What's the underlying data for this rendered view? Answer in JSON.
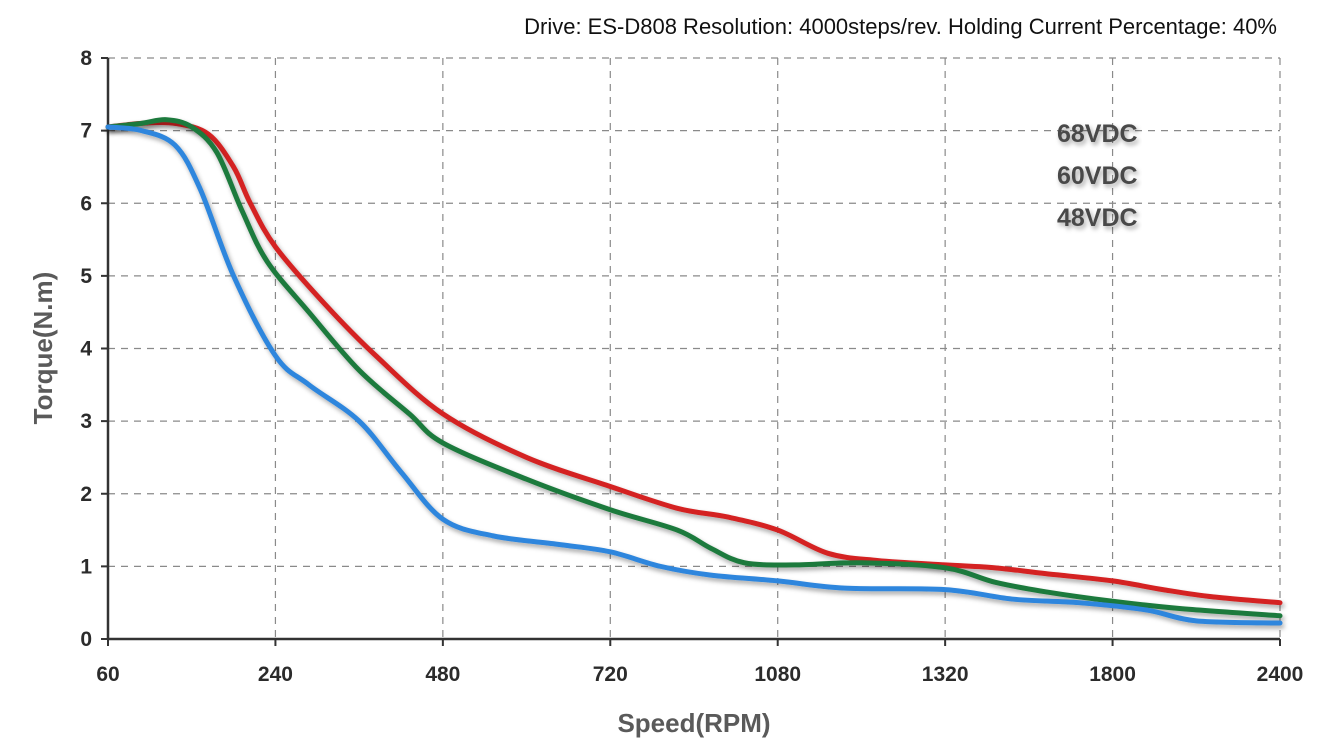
{
  "chart_data": {
    "type": "line",
    "title": "Drive: ES-D808 Resolution: 4000steps/rev. Holding Current Percentage: 40%",
    "xlabel": "Speed(RPM)",
    "ylabel": "Torque(N.m)",
    "categories": [
      "60",
      "240",
      "480",
      "720",
      "1080",
      "1320",
      "1800",
      "2400"
    ],
    "ylim": [
      0,
      8
    ],
    "yticks": [
      "0",
      "1",
      "2",
      "3",
      "4",
      "5",
      "6",
      "7",
      "8"
    ],
    "grid": true,
    "legend_position": "top-right",
    "series": [
      {
        "name": "68VDC",
        "color": "#d42020",
        "points": [
          [
            0,
            7.05
          ],
          [
            0.2,
            7.1
          ],
          [
            0.4,
            7.1
          ],
          [
            0.6,
            6.95
          ],
          [
            0.75,
            6.5
          ],
          [
            0.85,
            6.0
          ],
          [
            1.0,
            5.4
          ],
          [
            1.3,
            4.6
          ],
          [
            1.6,
            3.9
          ],
          [
            2.0,
            3.1
          ],
          [
            2.5,
            2.5
          ],
          [
            3.0,
            2.1
          ],
          [
            3.4,
            1.8
          ],
          [
            3.7,
            1.68
          ],
          [
            4.0,
            1.5
          ],
          [
            4.3,
            1.18
          ],
          [
            4.6,
            1.08
          ],
          [
            5.0,
            1.02
          ],
          [
            5.3,
            0.98
          ],
          [
            5.6,
            0.9
          ],
          [
            6.0,
            0.8
          ],
          [
            6.3,
            0.68
          ],
          [
            6.6,
            0.58
          ],
          [
            7.0,
            0.5
          ]
        ]
      },
      {
        "name": "60VDC",
        "color": "#1e7a3c",
        "points": [
          [
            0,
            7.05
          ],
          [
            0.2,
            7.1
          ],
          [
            0.35,
            7.15
          ],
          [
            0.5,
            7.05
          ],
          [
            0.65,
            6.7
          ],
          [
            0.8,
            5.9
          ],
          [
            0.95,
            5.2
          ],
          [
            1.2,
            4.5
          ],
          [
            1.5,
            3.7
          ],
          [
            1.8,
            3.1
          ],
          [
            2.0,
            2.7
          ],
          [
            2.5,
            2.2
          ],
          [
            3.0,
            1.78
          ],
          [
            3.4,
            1.5
          ],
          [
            3.6,
            1.25
          ],
          [
            3.8,
            1.05
          ],
          [
            4.1,
            1.02
          ],
          [
            4.5,
            1.05
          ],
          [
            5.0,
            0.98
          ],
          [
            5.3,
            0.78
          ],
          [
            5.6,
            0.65
          ],
          [
            6.0,
            0.52
          ],
          [
            6.4,
            0.42
          ],
          [
            7.0,
            0.32
          ]
        ]
      },
      {
        "name": "48VDC",
        "color": "#2f86dd",
        "points": [
          [
            0,
            7.05
          ],
          [
            0.2,
            7.0
          ],
          [
            0.4,
            6.8
          ],
          [
            0.55,
            6.2
          ],
          [
            0.75,
            5.0
          ],
          [
            1.0,
            3.9
          ],
          [
            1.2,
            3.5
          ],
          [
            1.5,
            3.0
          ],
          [
            1.75,
            2.3
          ],
          [
            2.0,
            1.65
          ],
          [
            2.3,
            1.42
          ],
          [
            2.7,
            1.3
          ],
          [
            3.0,
            1.2
          ],
          [
            3.3,
            1.0
          ],
          [
            3.6,
            0.88
          ],
          [
            4.0,
            0.8
          ],
          [
            4.4,
            0.7
          ],
          [
            5.0,
            0.68
          ],
          [
            5.4,
            0.55
          ],
          [
            5.8,
            0.5
          ],
          [
            6.2,
            0.4
          ],
          [
            6.5,
            0.25
          ],
          [
            7.0,
            0.22
          ]
        ]
      }
    ]
  }
}
